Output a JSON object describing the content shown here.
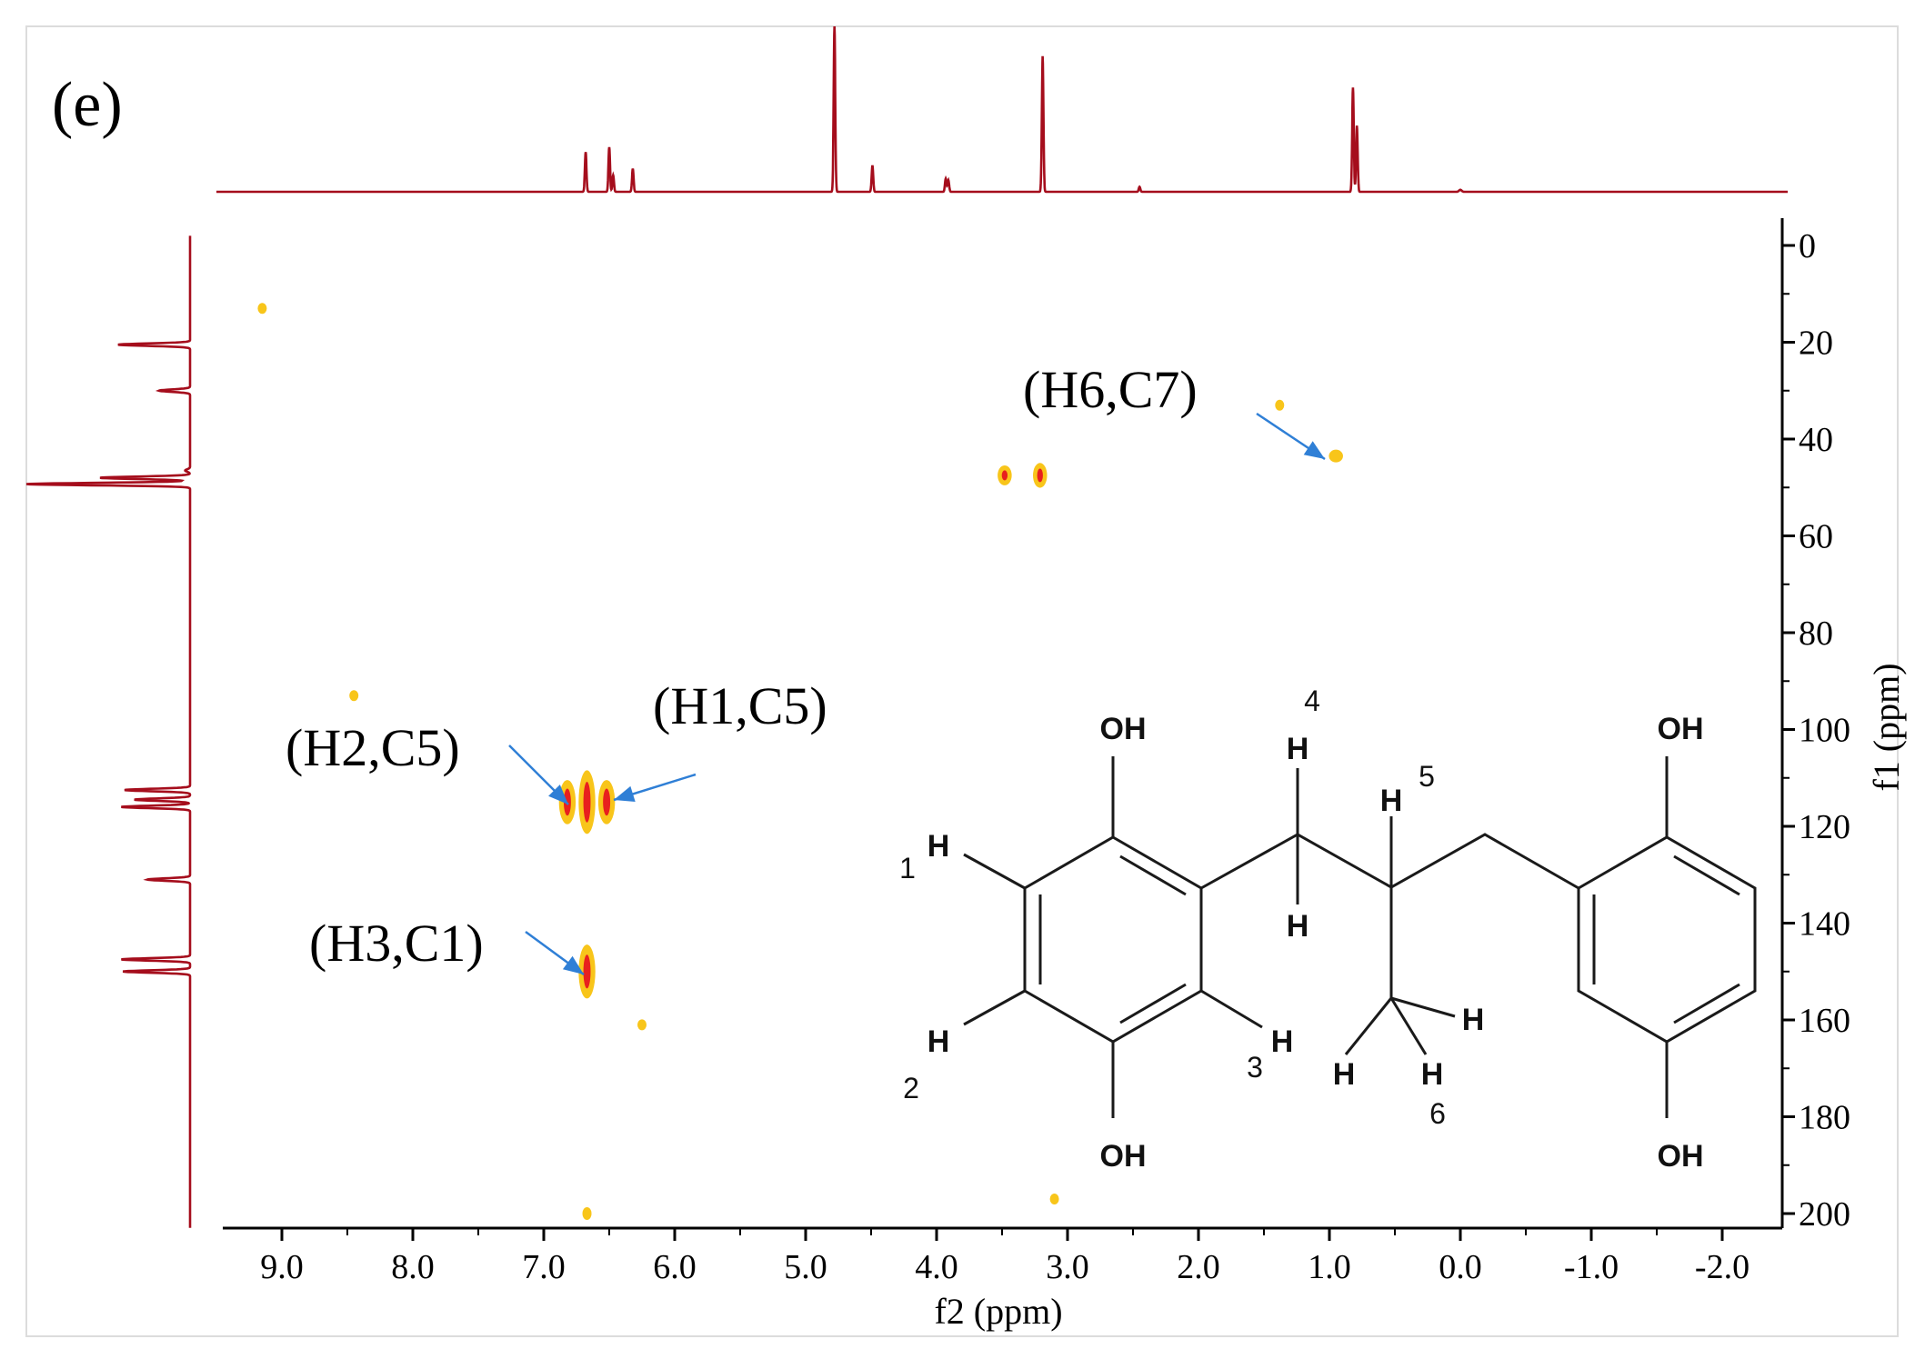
{
  "panel_label": "(e)",
  "colors": {
    "spectrum": "#a50d1c",
    "peak_core": "#e8201e",
    "peak_halo": "#f8c51a",
    "arrow": "#2f7fd6",
    "axis": "#000000"
  },
  "chart_data": {
    "type": "heatmap",
    "subtype": "2D NMR HSQC spectrum with 1D projections",
    "xlabel": "f2 (ppm)",
    "ylabel": "f1 (ppm)",
    "xlim": [
      9.5,
      -2.5
    ],
    "ylim": [
      -5,
      203
    ],
    "x_reversed": true,
    "x_ticks": [
      "9.0",
      "8.0",
      "7.0",
      "6.0",
      "5.0",
      "4.0",
      "3.0",
      "2.0",
      "1.0",
      "0.0",
      "-1.0",
      "-2.0"
    ],
    "x_tick_values": [
      9,
      8,
      7,
      6,
      5,
      4,
      3,
      2,
      1,
      0,
      -1,
      -2
    ],
    "y_ticks": [
      "0",
      "20",
      "40",
      "60",
      "80",
      "100",
      "120",
      "140",
      "160",
      "180",
      "200"
    ],
    "y_tick_values": [
      0,
      20,
      40,
      60,
      80,
      100,
      120,
      140,
      160,
      180,
      200
    ],
    "cross_peaks": [
      {
        "x": 6.82,
        "y": 115,
        "w": 0.05,
        "h": 8,
        "strong": true
      },
      {
        "x": 6.67,
        "y": 115,
        "w": 0.05,
        "h": 12,
        "strong": true
      },
      {
        "x": 6.52,
        "y": 115,
        "w": 0.05,
        "h": 8,
        "strong": true
      },
      {
        "x": 6.67,
        "y": 150,
        "w": 0.05,
        "h": 10,
        "strong": true
      },
      {
        "x": 3.48,
        "y": 47.5,
        "w": 0.04,
        "h": 3,
        "strong": true
      },
      {
        "x": 3.21,
        "y": 47.5,
        "w": 0.04,
        "h": 4,
        "strong": true
      },
      {
        "x": 0.95,
        "y": 43.5,
        "w": 0.04,
        "h": 1.5,
        "strong": false
      },
      {
        "x": 9.15,
        "y": 13,
        "w": 0.02,
        "h": 0.6,
        "strong": false
      },
      {
        "x": 8.45,
        "y": 93,
        "w": 0.02,
        "h": 0.8,
        "strong": false
      },
      {
        "x": 1.38,
        "y": 33,
        "w": 0.02,
        "h": 0.8,
        "strong": false
      },
      {
        "x": 6.25,
        "y": 161,
        "w": 0.02,
        "h": 0.6,
        "strong": false
      },
      {
        "x": 3.1,
        "y": 197,
        "w": 0.02,
        "h": 1.0,
        "strong": false
      },
      {
        "x": 6.67,
        "y": 200,
        "w": 0.02,
        "h": 1.5,
        "strong": false
      }
    ],
    "f2_projection": [
      {
        "x": 6.68,
        "h": 0.24
      },
      {
        "x": 6.5,
        "h": 0.27
      },
      {
        "x": 6.47,
        "h": 0.1
      },
      {
        "x": 6.32,
        "h": 0.14
      },
      {
        "x": 4.78,
        "h": 1.0
      },
      {
        "x": 4.49,
        "h": 0.16
      },
      {
        "x": 3.93,
        "h": 0.08
      },
      {
        "x": 3.91,
        "h": 0.07
      },
      {
        "x": 3.19,
        "h": 0.82
      },
      {
        "x": 2.45,
        "h": 0.03
      },
      {
        "x": 0.82,
        "h": 0.63
      },
      {
        "x": 0.79,
        "h": 0.4
      }
    ],
    "f1_projection": [
      {
        "y": 20.5,
        "h": 0.44
      },
      {
        "y": 30.0,
        "h": 0.19
      },
      {
        "y": 46.5,
        "h": 0.03
      },
      {
        "y": 48.0,
        "h": 0.55
      },
      {
        "y": 49.3,
        "h": 1.0
      },
      {
        "y": 112.5,
        "h": 0.4
      },
      {
        "y": 114.5,
        "h": 0.34
      },
      {
        "y": 116.0,
        "h": 0.42
      },
      {
        "y": 131.0,
        "h": 0.26
      },
      {
        "y": 147.5,
        "h": 0.42
      },
      {
        "y": 150.0,
        "h": 0.41
      }
    ],
    "annotations": [
      {
        "label": "(H6,C7)",
        "x": 0.95,
        "y": 43.5
      },
      {
        "label": "(H2,C5)",
        "x": 6.82,
        "y": 115
      },
      {
        "label": "(H1,C5)",
        "x": 6.52,
        "y": 115
      },
      {
        "label": "(H3,C1)",
        "x": 6.67,
        "y": 150
      }
    ]
  },
  "molecule": {
    "oh_labels": [
      "OH",
      "OH",
      "OH",
      "OH"
    ],
    "h_label": "H",
    "numbers": [
      "1",
      "2",
      "3",
      "4",
      "5",
      "6"
    ]
  }
}
